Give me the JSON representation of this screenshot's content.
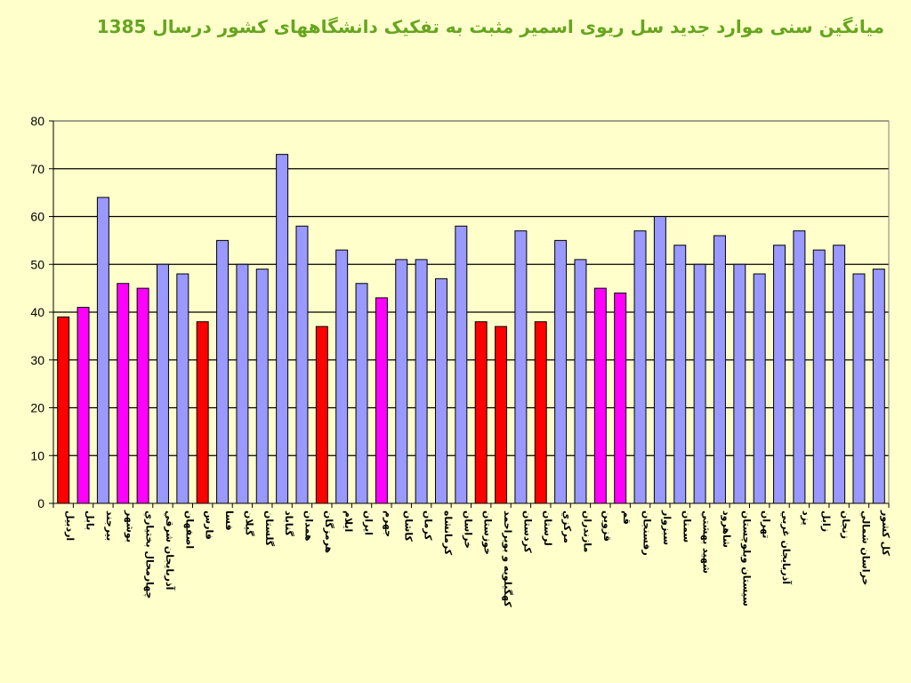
{
  "title": "میانگین سنی موارد جدید سل ریوی اسمیر مثبت  به تفکیک دانشگاههای کشور درسال 1385",
  "colors": {
    "background": "#ffffcc",
    "title": "#66a51f",
    "bar_blue": "#9999ff",
    "bar_red": "#ff0000",
    "bar_magenta": "#ff00ff",
    "grid": "#000000"
  },
  "chart_data": {
    "type": "bar",
    "title": "میانگین سنی موارد جدید سل ریوی اسمیر مثبت  به تفکیک دانشگاههای کشور درسال 1385",
    "xlabel": "",
    "ylabel": "",
    "ylim": [
      0,
      80
    ],
    "yticks": [
      0,
      10,
      20,
      30,
      40,
      50,
      60,
      70,
      80
    ],
    "grid": true,
    "legend": "none",
    "categories": [
      "اردبيل",
      "بابل",
      "بيرجند",
      "بوشهر",
      "چهارمحال بختياري",
      "آذربايجان شرقي",
      "اصفهان",
      "فارس",
      "فسا",
      "گيلان",
      "گلستان",
      "گناباد",
      "همدان",
      "هرمزگان",
      "ايلام",
      "ايران",
      "جهرم",
      "كاشان",
      "كرمان",
      "كرمانشاه",
      "خراسان",
      "خوزستان",
      "كهگيلويه و بويراحمد",
      "كردستان",
      "لرستان",
      "مركزي",
      "مازندران",
      "قزوين",
      "قم",
      "رفسنجان",
      "سبزوار",
      "سمنان",
      "شهيد بهشتي",
      "شاهرود",
      "سيستان وبلوچستان",
      "تهران",
      "آذربايجان غربي",
      "يزد",
      "زابل",
      "زنجان",
      "خراسان شمالي",
      "كل كشور"
    ],
    "values": [
      39,
      41,
      64,
      46,
      45,
      50,
      48,
      38,
      55,
      50,
      49,
      73,
      58,
      37,
      53,
      46,
      43,
      51,
      51,
      47,
      58,
      38,
      37,
      57,
      38,
      55,
      51,
      45,
      44,
      57,
      60,
      54,
      50,
      56,
      50,
      48,
      54,
      57,
      53,
      54,
      48,
      49
    ],
    "bar_color_keys": [
      "red",
      "magenta",
      "blue",
      "magenta",
      "magenta",
      "blue",
      "blue",
      "red",
      "blue",
      "blue",
      "blue",
      "blue",
      "blue",
      "red",
      "blue",
      "blue",
      "magenta",
      "blue",
      "blue",
      "blue",
      "blue",
      "red",
      "red",
      "blue",
      "red",
      "blue",
      "blue",
      "magenta",
      "magenta",
      "blue",
      "blue",
      "blue",
      "blue",
      "blue",
      "blue",
      "blue",
      "blue",
      "blue",
      "blue",
      "blue",
      "blue",
      "blue"
    ]
  }
}
